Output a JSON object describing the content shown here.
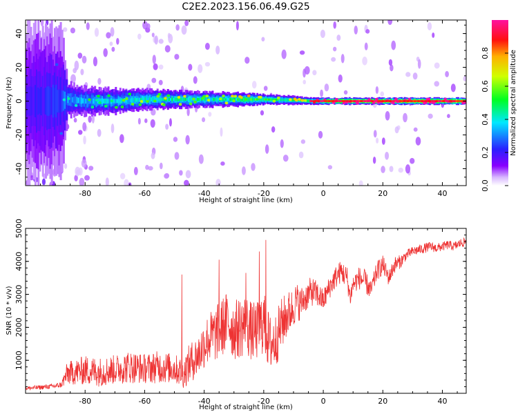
{
  "title": "C2E2.2023.156.06.49.G25",
  "chart_data": [
    {
      "type": "heatmap",
      "xlabel": "Height of straight line (km)",
      "ylabel": "Frequency (Hz)",
      "xlim": [
        -100,
        48
      ],
      "ylim": [
        -50,
        48
      ],
      "x_ticks": [
        -80,
        -60,
        -40,
        -20,
        0,
        20,
        40
      ],
      "y_ticks": [
        -40,
        -20,
        0,
        20,
        40
      ],
      "colorbar": {
        "label": "Normalized spectral amplitude",
        "range": [
          0,
          1
        ],
        "ticks": [
          "0.0",
          "0.2",
          "0.4",
          "0.6",
          "0.8"
        ],
        "colormap": "rainbow (white-violet-blue-cyan-green-yellow-red-magenta)"
      },
      "ridge": [
        {
          "x": -98,
          "center_hz": 0,
          "halfwidth_hz": 45,
          "amplitude": 0.2
        },
        {
          "x": -88,
          "center_hz": 0,
          "halfwidth_hz": 40,
          "amplitude": 0.25
        },
        {
          "x": -86,
          "center_hz": 1,
          "halfwidth_hz": 10,
          "amplitude": 0.35
        },
        {
          "x": -80,
          "center_hz": 0,
          "halfwidth_hz": 8,
          "amplitude": 0.4
        },
        {
          "x": -70,
          "center_hz": 0,
          "halfwidth_hz": 7,
          "amplitude": 0.42
        },
        {
          "x": -60,
          "center_hz": 1,
          "halfwidth_hz": 6,
          "amplitude": 0.48
        },
        {
          "x": -50,
          "center_hz": 1,
          "halfwidth_hz": 5,
          "amplitude": 0.52
        },
        {
          "x": -40,
          "center_hz": 1,
          "halfwidth_hz": 4.5,
          "amplitude": 0.5
        },
        {
          "x": -30,
          "center_hz": 1,
          "halfwidth_hz": 4,
          "amplitude": 0.55
        },
        {
          "x": -25,
          "center_hz": 1,
          "halfwidth_hz": 3.5,
          "amplitude": 0.65
        },
        {
          "x": -20,
          "center_hz": 1,
          "halfwidth_hz": 3,
          "amplitude": 0.6
        },
        {
          "x": -10,
          "center_hz": 0.5,
          "halfwidth_hz": 2.5,
          "amplitude": 0.55
        },
        {
          "x": -4,
          "center_hz": 0,
          "halfwidth_hz": 2,
          "amplitude": 0.62
        },
        {
          "x": 0,
          "center_hz": 0,
          "halfwidth_hz": 2,
          "amplitude": 0.9
        },
        {
          "x": 10,
          "center_hz": 0,
          "halfwidth_hz": 2,
          "amplitude": 0.92
        },
        {
          "x": 20,
          "center_hz": 0,
          "halfwidth_hz": 2,
          "amplitude": 0.95
        },
        {
          "x": 30,
          "center_hz": 0,
          "halfwidth_hz": 2,
          "amplitude": 0.96
        },
        {
          "x": 48,
          "center_hz": 0,
          "halfwidth_hz": 2,
          "amplitude": 0.97
        }
      ]
    },
    {
      "type": "line",
      "xlabel": "Height of straight line (km)",
      "ylabel": "SNR (10 * v/v)",
      "xlim": [
        -100,
        48
      ],
      "ylim": [
        0,
        5000
      ],
      "x_ticks": [
        -80,
        -60,
        -40,
        -20,
        0,
        20,
        40
      ],
      "y_ticks": [
        1000,
        2000,
        3000,
        4000,
        5000
      ],
      "series": [
        {
          "color": "#ee3333",
          "x": [
            -100,
            -95,
            -90,
            -88,
            -86,
            -80,
            -75,
            -70,
            -65,
            -60,
            -55,
            -50,
            -47,
            -45,
            -42,
            -40,
            -38,
            -36,
            -34,
            -32,
            -30,
            -28,
            -26,
            -24,
            -22,
            -20,
            -19,
            -18,
            -16,
            -14,
            -12,
            -10,
            -9,
            -8,
            -6,
            -4,
            -2,
            0,
            2,
            4,
            6,
            8,
            9,
            10,
            12,
            14,
            16,
            18,
            20,
            22,
            24,
            26,
            28,
            30,
            32,
            34,
            36,
            38,
            40,
            42,
            44,
            46,
            48
          ],
          "y": [
            150,
            180,
            220,
            260,
            600,
            700,
            650,
            720,
            800,
            750,
            800,
            750,
            600,
            900,
            1150,
            1500,
            1700,
            1800,
            2000,
            2200,
            1900,
            2000,
            2100,
            1850,
            1900,
            2200,
            1800,
            1500,
            1600,
            2100,
            2400,
            2600,
            2800,
            2700,
            2900,
            3100,
            3000,
            2800,
            3200,
            3500,
            3700,
            3500,
            2900,
            3300,
            3500,
            3400,
            3100,
            3700,
            3900,
            3500,
            3900,
            4000,
            4200,
            4300,
            4350,
            4400,
            4450,
            4400,
            4450,
            4500,
            4450,
            4550,
            4600
          ],
          "noise": [
            60,
            70,
            80,
            90,
            350,
            450,
            450,
            450,
            500,
            450,
            500,
            450,
            450,
            600,
            650,
            750,
            800,
            850,
            900,
            950,
            900,
            950,
            950,
            900,
            900,
            1000,
            900,
            900,
            850,
            800,
            700,
            600,
            600,
            500,
            450,
            450,
            400,
            350,
            350,
            350,
            350,
            350,
            300,
            300,
            350,
            350,
            300,
            300,
            300,
            250,
            250,
            200,
            150,
            150,
            150,
            150,
            150,
            140,
            140,
            140,
            140,
            140,
            140
          ],
          "spikes": [
            {
              "x": -47.5,
              "y": 3600
            },
            {
              "x": -35,
              "y": 4050
            },
            {
              "x": -26,
              "y": 3650
            },
            {
              "x": -19.3,
              "y": 4650
            },
            {
              "x": -21.5,
              "y": 4300
            }
          ]
        }
      ]
    }
  ]
}
